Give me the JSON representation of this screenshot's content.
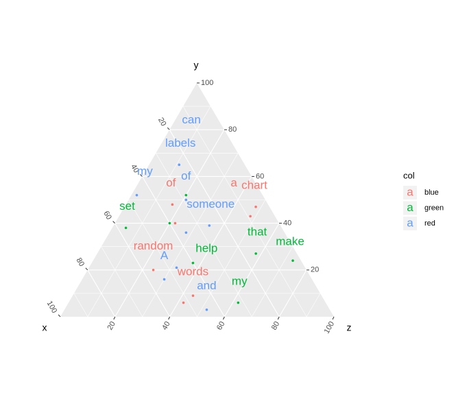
{
  "chart_data": {
    "type": "ternary",
    "axis_labels": {
      "x": "x",
      "y": "y",
      "z": "z"
    },
    "xlim": [
      0,
      100
    ],
    "ylim": [
      0,
      100
    ],
    "zlim": [
      0,
      100
    ],
    "xticks": [
      20,
      40,
      60,
      80,
      100
    ],
    "yticks": [
      20,
      40,
      60,
      80,
      100
    ],
    "zticks": [
      20,
      40,
      60,
      80,
      100
    ],
    "grid": true,
    "legend_title": "col",
    "legend_symbol": "a",
    "legend_position": "right",
    "series": [
      {
        "name": "blue",
        "color": "#F8766D",
        "points": [
          [
            35,
            48,
            17
          ],
          [
            5,
            47,
            48
          ],
          [
            9,
            43,
            48
          ],
          [
            38,
            40,
            22
          ],
          [
            56,
            20,
            24
          ],
          [
            47,
            9,
            44
          ],
          [
            52,
            6,
            42
          ]
        ],
        "labels": [
          {
            "text": "of",
            "values": [
              31,
              57,
              12
            ]
          },
          {
            "text": "a",
            "values": [
              8,
              57,
              35
            ]
          },
          {
            "text": "chart",
            "values": [
              1,
              56,
              43
            ]
          },
          {
            "text": "random",
            "values": [
              51,
              30,
              19
            ]
          },
          {
            "text": "words",
            "values": [
              42,
              19,
              39
            ]
          }
        ]
      },
      {
        "name": "green",
        "color": "#00BA38",
        "points": [
          [
            28,
            52,
            20
          ],
          [
            57,
            38,
            5
          ],
          [
            40,
            40,
            20
          ],
          [
            15,
            27,
            58
          ],
          [
            3,
            24,
            73
          ],
          [
            40,
            23,
            37
          ],
          [
            32,
            6,
            62
          ]
        ],
        "labels": [
          {
            "text": "set",
            "values": [
              52,
              47,
              1
            ]
          },
          {
            "text": "that",
            "values": [
              10,
              36,
              54
            ]
          },
          {
            "text": "make",
            "values": [
              0,
              32,
              68
            ]
          },
          {
            "text": "help",
            "values": [
              32,
              29,
              39
            ]
          },
          {
            "text": "my",
            "values": [
              27,
              15,
              58
            ]
          }
        ]
      },
      {
        "name": "red",
        "color": "#619CFF",
        "points": [
          [
            24,
            65,
            11
          ],
          [
            46,
            52,
            2
          ],
          [
            29,
            50,
            21
          ],
          [
            26,
            39,
            35
          ],
          [
            36,
            36,
            28
          ],
          [
            47,
            21,
            32
          ],
          [
            54,
            16,
            30
          ],
          [
            45,
            3,
            52
          ]
        ],
        "labels": [
          {
            "text": "can",
            "values": [
              10,
              84,
              6
            ]
          },
          {
            "text": "labels",
            "values": [
              19,
              74,
              7
            ]
          },
          {
            "text": "my",
            "values": [
              38,
              62,
              0
            ]
          },
          {
            "text": "of",
            "values": [
              24,
              60,
              16
            ]
          },
          {
            "text": "someone",
            "values": [
              21,
              48,
              31
            ]
          },
          {
            "text": "A",
            "values": [
              49,
              26,
              25
            ]
          },
          {
            "text": "and",
            "values": [
              40,
              13,
              47
            ]
          }
        ]
      }
    ]
  }
}
